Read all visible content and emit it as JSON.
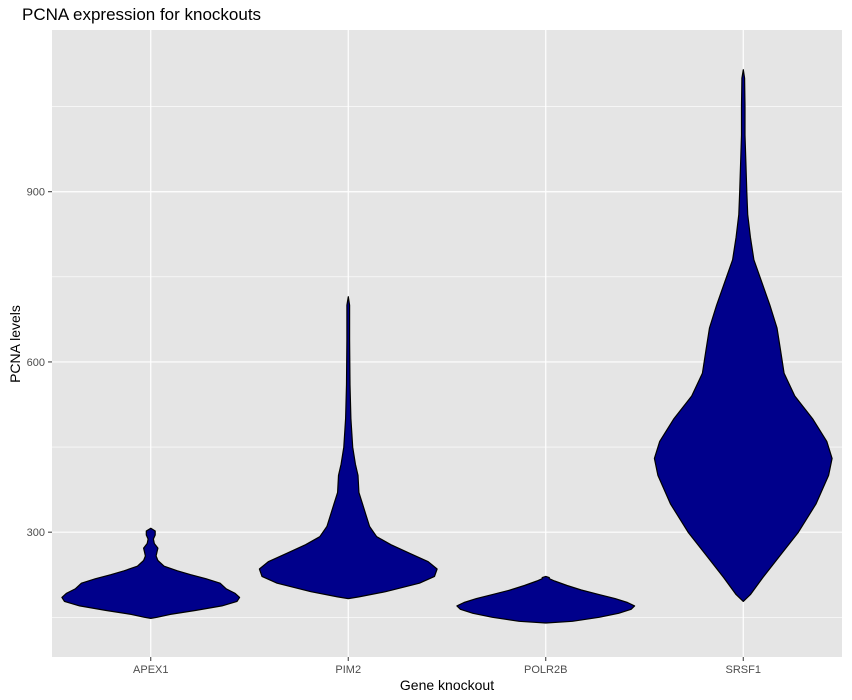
{
  "chart_data": {
    "type": "violin",
    "title": "PCNA expression for knockouts",
    "xlabel": "Gene knockout",
    "ylabel": "PCNA levels",
    "categories": [
      "APEX1",
      "PIM2",
      "POLR2B",
      "SRSF1"
    ],
    "yticks": [
      300,
      600,
      900
    ],
    "ylim": [
      80,
      1185
    ],
    "grid": true,
    "fill_color": "#00008B",
    "outline_color": "#000000",
    "panel_background": "#E5E5E5",
    "gridline_color": "#FFFFFF",
    "series": [
      {
        "category": "APEX1",
        "min": 148,
        "max": 307,
        "density_profile": [
          {
            "y": 148,
            "w": 0.0
          },
          {
            "y": 150,
            "w": 0.07
          },
          {
            "y": 155,
            "w": 0.22
          },
          {
            "y": 162,
            "w": 0.5
          },
          {
            "y": 170,
            "w": 0.8
          },
          {
            "y": 178,
            "w": 0.97
          },
          {
            "y": 185,
            "w": 1.0
          },
          {
            "y": 192,
            "w": 0.95
          },
          {
            "y": 200,
            "w": 0.85
          },
          {
            "y": 210,
            "w": 0.78
          },
          {
            "y": 218,
            "w": 0.62
          },
          {
            "y": 225,
            "w": 0.45
          },
          {
            "y": 232,
            "w": 0.3
          },
          {
            "y": 240,
            "w": 0.15
          },
          {
            "y": 250,
            "w": 0.08
          },
          {
            "y": 258,
            "w": 0.06
          },
          {
            "y": 265,
            "w": 0.07
          },
          {
            "y": 272,
            "w": 0.08
          },
          {
            "y": 280,
            "w": 0.04
          },
          {
            "y": 288,
            "w": 0.03
          },
          {
            "y": 295,
            "w": 0.05
          },
          {
            "y": 302,
            "w": 0.05
          },
          {
            "y": 307,
            "w": 0.0
          }
        ]
      },
      {
        "category": "PIM2",
        "min": 183,
        "max": 715,
        "density_profile": [
          {
            "y": 183,
            "w": 0.0
          },
          {
            "y": 186,
            "w": 0.12
          },
          {
            "y": 195,
            "w": 0.42
          },
          {
            "y": 210,
            "w": 0.8
          },
          {
            "y": 222,
            "w": 0.97
          },
          {
            "y": 235,
            "w": 1.0
          },
          {
            "y": 248,
            "w": 0.9
          },
          {
            "y": 262,
            "w": 0.7
          },
          {
            "y": 278,
            "w": 0.48
          },
          {
            "y": 292,
            "w": 0.32
          },
          {
            "y": 310,
            "w": 0.24
          },
          {
            "y": 330,
            "w": 0.2
          },
          {
            "y": 350,
            "w": 0.16
          },
          {
            "y": 370,
            "w": 0.12
          },
          {
            "y": 400,
            "w": 0.11
          },
          {
            "y": 420,
            "w": 0.08
          },
          {
            "y": 450,
            "w": 0.05
          },
          {
            "y": 500,
            "w": 0.03
          },
          {
            "y": 560,
            "w": 0.02
          },
          {
            "y": 640,
            "w": 0.015
          },
          {
            "y": 700,
            "w": 0.015
          },
          {
            "y": 715,
            "w": 0.0
          }
        ]
      },
      {
        "category": "POLR2B",
        "min": 140,
        "max": 222,
        "density_profile": [
          {
            "y": 140,
            "w": 0.0
          },
          {
            "y": 143,
            "w": 0.3
          },
          {
            "y": 150,
            "w": 0.6
          },
          {
            "y": 157,
            "w": 0.82
          },
          {
            "y": 164,
            "w": 0.96
          },
          {
            "y": 170,
            "w": 1.0
          },
          {
            "y": 176,
            "w": 0.92
          },
          {
            "y": 183,
            "w": 0.78
          },
          {
            "y": 190,
            "w": 0.6
          },
          {
            "y": 198,
            "w": 0.4
          },
          {
            "y": 206,
            "w": 0.24
          },
          {
            "y": 214,
            "w": 0.1
          },
          {
            "y": 218,
            "w": 0.04
          },
          {
            "y": 220,
            "w": 0.04
          },
          {
            "y": 222,
            "w": 0.0
          }
        ]
      },
      {
        "category": "SRSF1",
        "min": 178,
        "max": 1115,
        "density_profile": [
          {
            "y": 178,
            "w": 0.0
          },
          {
            "y": 190,
            "w": 0.08
          },
          {
            "y": 220,
            "w": 0.22
          },
          {
            "y": 260,
            "w": 0.42
          },
          {
            "y": 300,
            "w": 0.62
          },
          {
            "y": 350,
            "w": 0.82
          },
          {
            "y": 400,
            "w": 0.96
          },
          {
            "y": 430,
            "w": 1.0
          },
          {
            "y": 460,
            "w": 0.94
          },
          {
            "y": 500,
            "w": 0.78
          },
          {
            "y": 540,
            "w": 0.58
          },
          {
            "y": 580,
            "w": 0.46
          },
          {
            "y": 620,
            "w": 0.42
          },
          {
            "y": 660,
            "w": 0.38
          },
          {
            "y": 700,
            "w": 0.3
          },
          {
            "y": 740,
            "w": 0.21
          },
          {
            "y": 780,
            "w": 0.12
          },
          {
            "y": 820,
            "w": 0.08
          },
          {
            "y": 860,
            "w": 0.05
          },
          {
            "y": 900,
            "w": 0.04
          },
          {
            "y": 950,
            "w": 0.03
          },
          {
            "y": 1000,
            "w": 0.02
          },
          {
            "y": 1050,
            "w": 0.02
          },
          {
            "y": 1100,
            "w": 0.015
          },
          {
            "y": 1115,
            "w": 0.0
          }
        ]
      }
    ]
  }
}
